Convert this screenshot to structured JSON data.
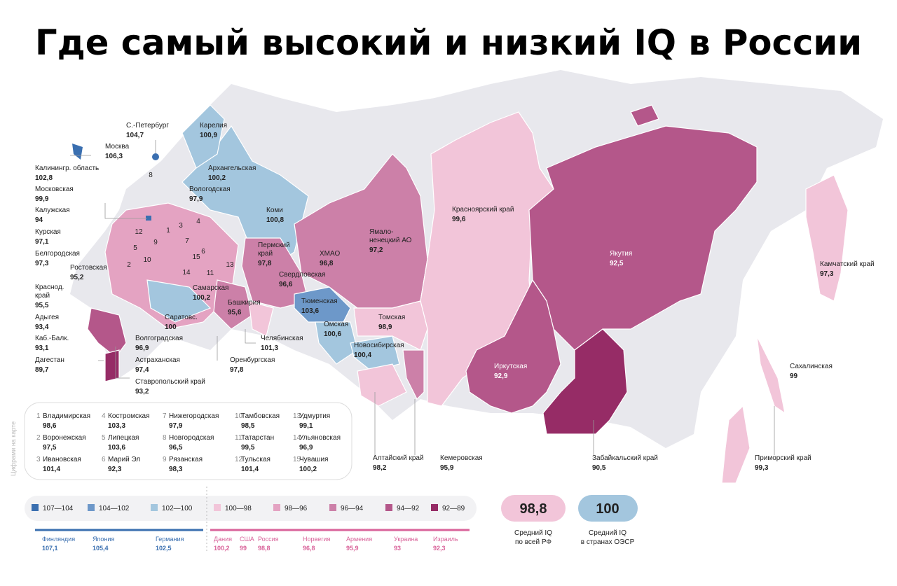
{
  "title": "Где самый высокий и низкий IQ в России",
  "regions": [
    {
      "name": [
        "С.-Петербург"
      ],
      "value": "104,7"
    },
    {
      "name": [
        "Карелия"
      ],
      "value": "100,9"
    },
    {
      "name": [
        "Москва"
      ],
      "value": "106,3"
    },
    {
      "name": [
        "Калинингр. область"
      ],
      "value": "102,8"
    },
    {
      "name": [
        "Архангельская"
      ],
      "value": "100,2"
    },
    {
      "name": [
        "Вологодская"
      ],
      "value": "97,9"
    },
    {
      "name": [
        "Московская"
      ],
      "value": "99,9"
    },
    {
      "name": [
        "Калужская"
      ],
      "value": "94"
    },
    {
      "name": [
        "Коми"
      ],
      "value": "100,8"
    },
    {
      "name": [
        "Красноярский край"
      ],
      "value": "99,6"
    },
    {
      "name": [
        "Курская"
      ],
      "value": "97,1"
    },
    {
      "name": [
        "Ямало-",
        "ненецкий АО"
      ],
      "value": "97,2"
    },
    {
      "name": [
        "Белгородская"
      ],
      "value": "97,3"
    },
    {
      "name": [
        "Пермский",
        "край"
      ],
      "value": "97,8"
    },
    {
      "name": [
        "ХМАО"
      ],
      "value": "96,8"
    },
    {
      "name": [
        "Якутия"
      ],
      "value": "92,5"
    },
    {
      "name": [
        "Ростовская"
      ],
      "value": "95,2"
    },
    {
      "name": [
        "Камчатский край"
      ],
      "value": "97,3"
    },
    {
      "name": [
        "Свердловская"
      ],
      "value": "96,6"
    },
    {
      "name": [
        "Краснод.",
        "край"
      ],
      "value": "95,5"
    },
    {
      "name": [
        "Самарская"
      ],
      "value": "100,2"
    },
    {
      "name": [
        "Башкирия"
      ],
      "value": "95,6"
    },
    {
      "name": [
        "Тюменская"
      ],
      "value": "103,6"
    },
    {
      "name": [
        "Томская"
      ],
      "value": "98,9"
    },
    {
      "name": [
        "Адыгея"
      ],
      "value": "93,4"
    },
    {
      "name": [
        "Саратовс."
      ],
      "value": "100"
    },
    {
      "name": [
        "Омская"
      ],
      "value": "100,6"
    },
    {
      "name": [
        "Челябинская"
      ],
      "value": "101,3"
    },
    {
      "name": [
        "Каб.-Балк."
      ],
      "value": "93,1"
    },
    {
      "name": [
        "Волгоградская"
      ],
      "value": "96,9"
    },
    {
      "name": [
        "Новосибирская"
      ],
      "value": "100,4"
    },
    {
      "name": [
        "Дагестан"
      ],
      "value": "89,7"
    },
    {
      "name": [
        "Астраханская"
      ],
      "value": "97,4"
    },
    {
      "name": [
        "Оренбургская"
      ],
      "value": "97,8"
    },
    {
      "name": [
        "Иркутская"
      ],
      "value": "92,9"
    },
    {
      "name": [
        "Сахалинская"
      ],
      "value": "99"
    },
    {
      "name": [
        "Ставропольский край"
      ],
      "value": "93,2"
    },
    {
      "name": [
        "Алтайский край"
      ],
      "value": "98,2"
    },
    {
      "name": [
        "Кемеровская"
      ],
      "value": "95,9"
    },
    {
      "name": [
        "Забайкальский край"
      ],
      "value": "90,5"
    },
    {
      "name": [
        "Приморский край"
      ],
      "value": "99,3"
    }
  ],
  "numbered_note": "Цифрами на карте",
  "numbered": [
    {
      "num": 1,
      "name": "Владимирская",
      "value": "98,6"
    },
    {
      "num": 2,
      "name": "Воронежская",
      "value": "97,5"
    },
    {
      "num": 3,
      "name": "Ивановская",
      "value": "101,4"
    },
    {
      "num": 4,
      "name": "Костромская",
      "value": "103,3"
    },
    {
      "num": 5,
      "name": "Липецкая",
      "value": "103,6"
    },
    {
      "num": 6,
      "name": "Марий Эл",
      "value": "92,3"
    },
    {
      "num": 7,
      "name": "Нижегородская",
      "value": "97,9"
    },
    {
      "num": 8,
      "name": "Новгородская",
      "value": "96,5"
    },
    {
      "num": 9,
      "name": "Рязанская",
      "value": "98,3"
    },
    {
      "num": 10,
      "name": "Тамбовская",
      "value": "98,5"
    },
    {
      "num": 11,
      "name": "Татарстан",
      "value": "99,5"
    },
    {
      "num": 12,
      "name": "Тульская",
      "value": "101,4"
    },
    {
      "num": 13,
      "name": "Удмуртия",
      "value": "99,1"
    },
    {
      "num": 14,
      "name": "Ульяновская",
      "value": "96,9"
    },
    {
      "num": 15,
      "name": "Чувашия",
      "value": "100,2"
    }
  ],
  "legend": [
    {
      "label": "107—104",
      "color": "#3a6fb0"
    },
    {
      "label": "104—102",
      "color": "#6d98c9"
    },
    {
      "label": "102—100",
      "color": "#a3c6de"
    },
    {
      "label": "100—98",
      "color": "#f2c5d9"
    },
    {
      "label": "98—96",
      "color": "#e4a3c2"
    },
    {
      "label": "96—94",
      "color": "#cc80a8"
    },
    {
      "label": "94—92",
      "color": "#b4578a"
    },
    {
      "label": "92—89",
      "color": "#962c66"
    }
  ],
  "summary": [
    {
      "value": "98,8",
      "label": [
        "Средний IQ",
        "по всей РФ"
      ]
    },
    {
      "value": "100",
      "label": [
        "Средний IQ",
        "в странах ОЭСР"
      ]
    }
  ],
  "countries": [
    {
      "name": "Финляндия",
      "value": "107,1"
    },
    {
      "name": "Япония",
      "value": "105,4"
    },
    {
      "name": "Германия",
      "value": "102,5"
    },
    {
      "name": "Дания",
      "value": "100,2"
    },
    {
      "name": "США",
      "value": "99"
    },
    {
      "name": "Россия",
      "value": "98,8"
    },
    {
      "name": "Норвегия",
      "value": "96,8"
    },
    {
      "name": "Армения",
      "value": "95,9"
    },
    {
      "name": "Украина",
      "value": "93"
    },
    {
      "name": "Израиль",
      "value": "92,3"
    }
  ]
}
